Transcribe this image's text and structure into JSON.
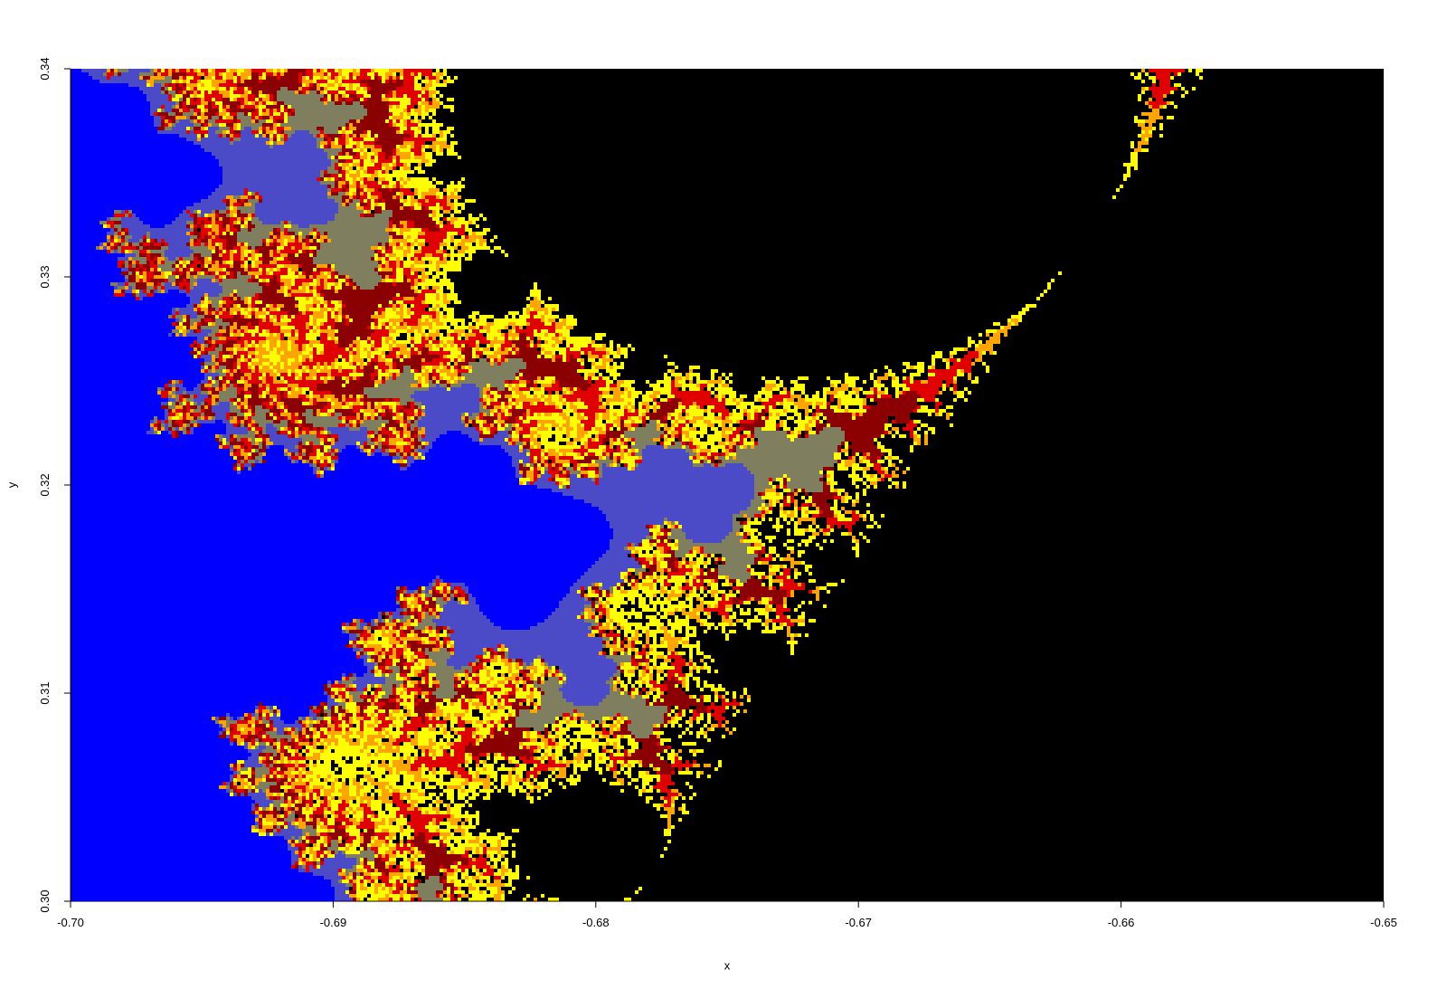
{
  "chart_data": {
    "type": "image",
    "x_label": "x",
    "y_label": "y",
    "xlim": [
      -0.7,
      -0.65
    ],
    "ylim": [
      0.3,
      0.34
    ],
    "xticks": [
      {
        "value": -0.7,
        "label": "-0.70"
      },
      -0.69,
      -0.68,
      -0.67,
      -0.66,
      -0.65
    ],
    "yticks": [
      {
        "value": 0.3,
        "label": "0.30"
      },
      0.31,
      0.32,
      0.33,
      0.34
    ],
    "colors": [
      "#0000ff",
      "#4b4bc8",
      "#7f7f60",
      "#8b0000",
      "#e00000",
      "#ffa500",
      "#ffff00"
    ],
    "interior_color": "#000000"
  }
}
